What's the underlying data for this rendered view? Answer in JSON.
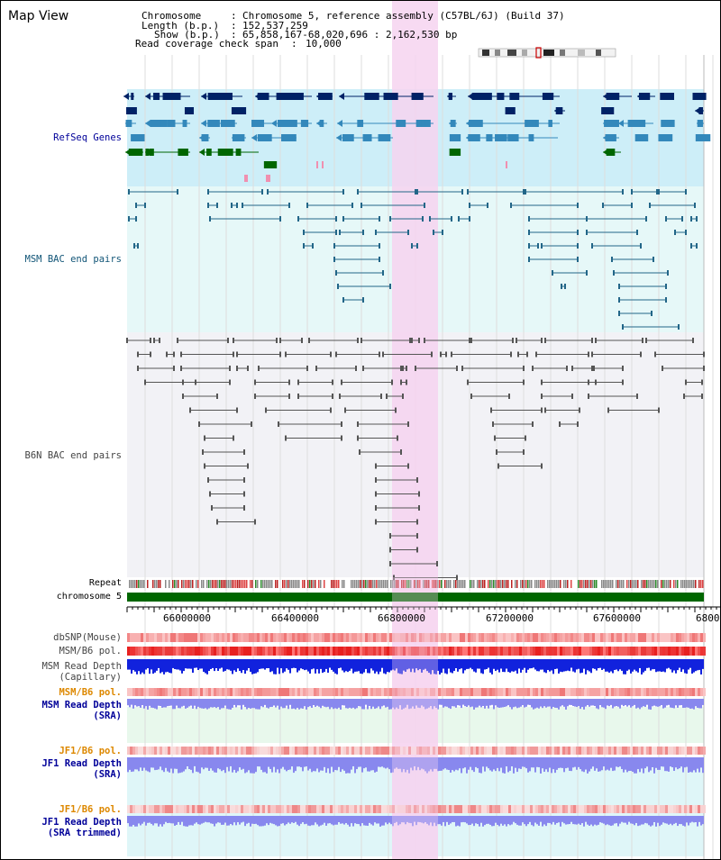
{
  "window": {
    "title": "Map View"
  },
  "header": {
    "chromosome_key": "Chromosome",
    "chromosome_val": "Chromosome 5, reference assembly (C57BL/6J) (Build 37)",
    "length_key": "Length (b.p.)",
    "length_val": "152,537,259",
    "show_key": "Show (b.p.)",
    "show_val": "65,858,167-68,020,696 : 2,162,530 bp",
    "coverage_key": "Read coverage check span",
    "coverage_val": "10,000"
  },
  "tracks": {
    "refseq": "RefSeq Genes",
    "msm_bac": "MSM BAC end pairs",
    "b6n_bac": "B6N BAC end pairs",
    "repeat": "Repeat",
    "chromosome": "chromosome 5",
    "dbsnp": "dbSNP(Mouse)",
    "msm_b6_pol_1": "MSM/B6 pol.",
    "msm_depth_cap_1": "MSM Read Depth",
    "msm_depth_cap_2": "(Capillary)",
    "msm_b6_pol_2": "MSM/B6 pol.",
    "msm_depth_sra_1": "MSM Read Depth",
    "msm_depth_sra_2": "(SRA)",
    "jf1_b6_pol_1": "JF1/B6 pol.",
    "jf1_depth_sra_1": "JF1 Read Depth",
    "jf1_depth_sra_2": "(SRA)",
    "jf1_b6_pol_2": "JF1/B6 pol.",
    "jf1_depth_trim_1": "JF1 Read Depth",
    "jf1_depth_trim_2": "(SRA trimmed)"
  },
  "axis": {
    "ticks": [
      "66000000",
      "66400000",
      "66800000",
      "67200000",
      "67600000",
      "6800"
    ]
  },
  "colors": {
    "highlight": "#f6d4f0",
    "refseq_bg": "#cdeef8",
    "msm_bg": "#e6f8f8",
    "b6n_bg": "#f2f2f6",
    "gene_dark": "#002266",
    "gene_mid": "#3388bb",
    "gene_green": "#006600",
    "msm_line": "#226688",
    "b6n_line": "#555555",
    "chromosome_bar": "#006600",
    "depth_blue": "#1122dd",
    "depth_violet": "#8888ee",
    "label_blue": "#000099",
    "label_orange": "#dd8800",
    "label_teal": "#115577"
  }
}
